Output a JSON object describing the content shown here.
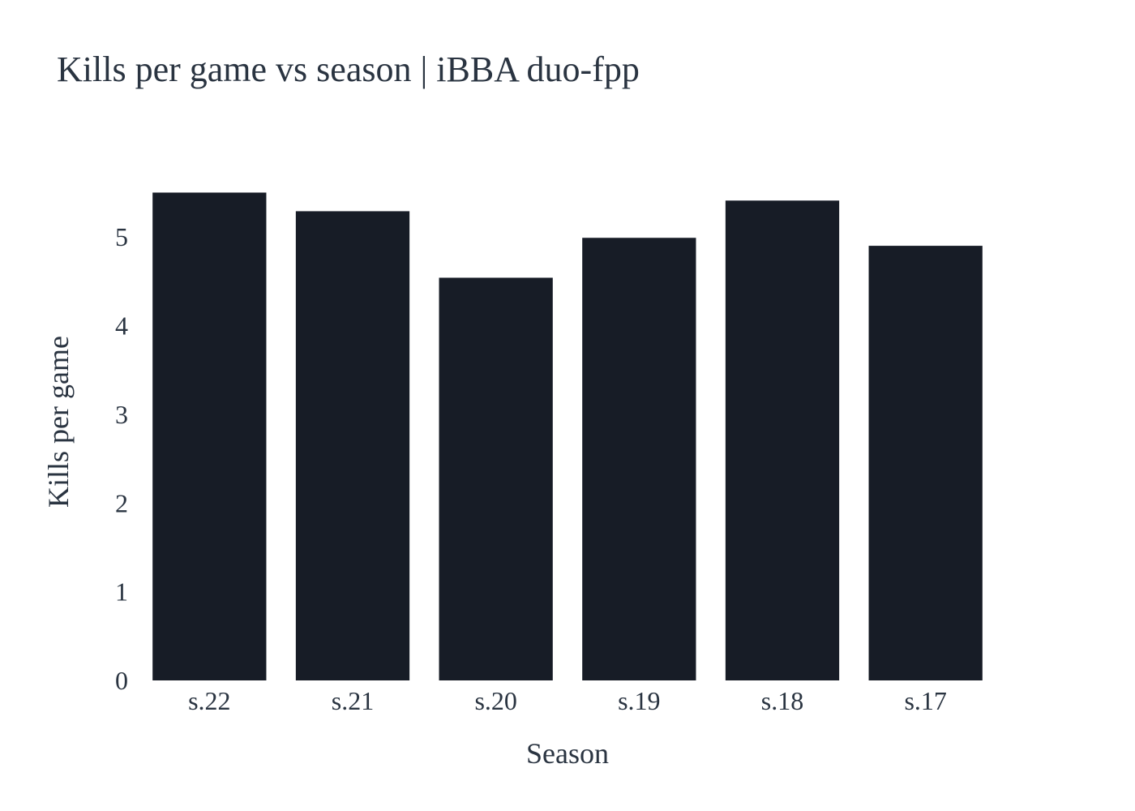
{
  "chart_data": {
    "type": "bar",
    "title": "Kills per game vs season | iBBA duo-fpp",
    "xlabel": "Season",
    "ylabel": "Kills per game",
    "categories": [
      "s.22",
      "s.21",
      "s.20",
      "s.19",
      "s.18",
      "s.17"
    ],
    "values": [
      5.5,
      5.29,
      4.54,
      4.99,
      5.41,
      4.9
    ],
    "ylim": [
      0,
      5.55
    ],
    "yticks": [
      "0",
      "1",
      "2",
      "3",
      "4",
      "5"
    ],
    "grid": false,
    "bar_color": "#171c26"
  }
}
